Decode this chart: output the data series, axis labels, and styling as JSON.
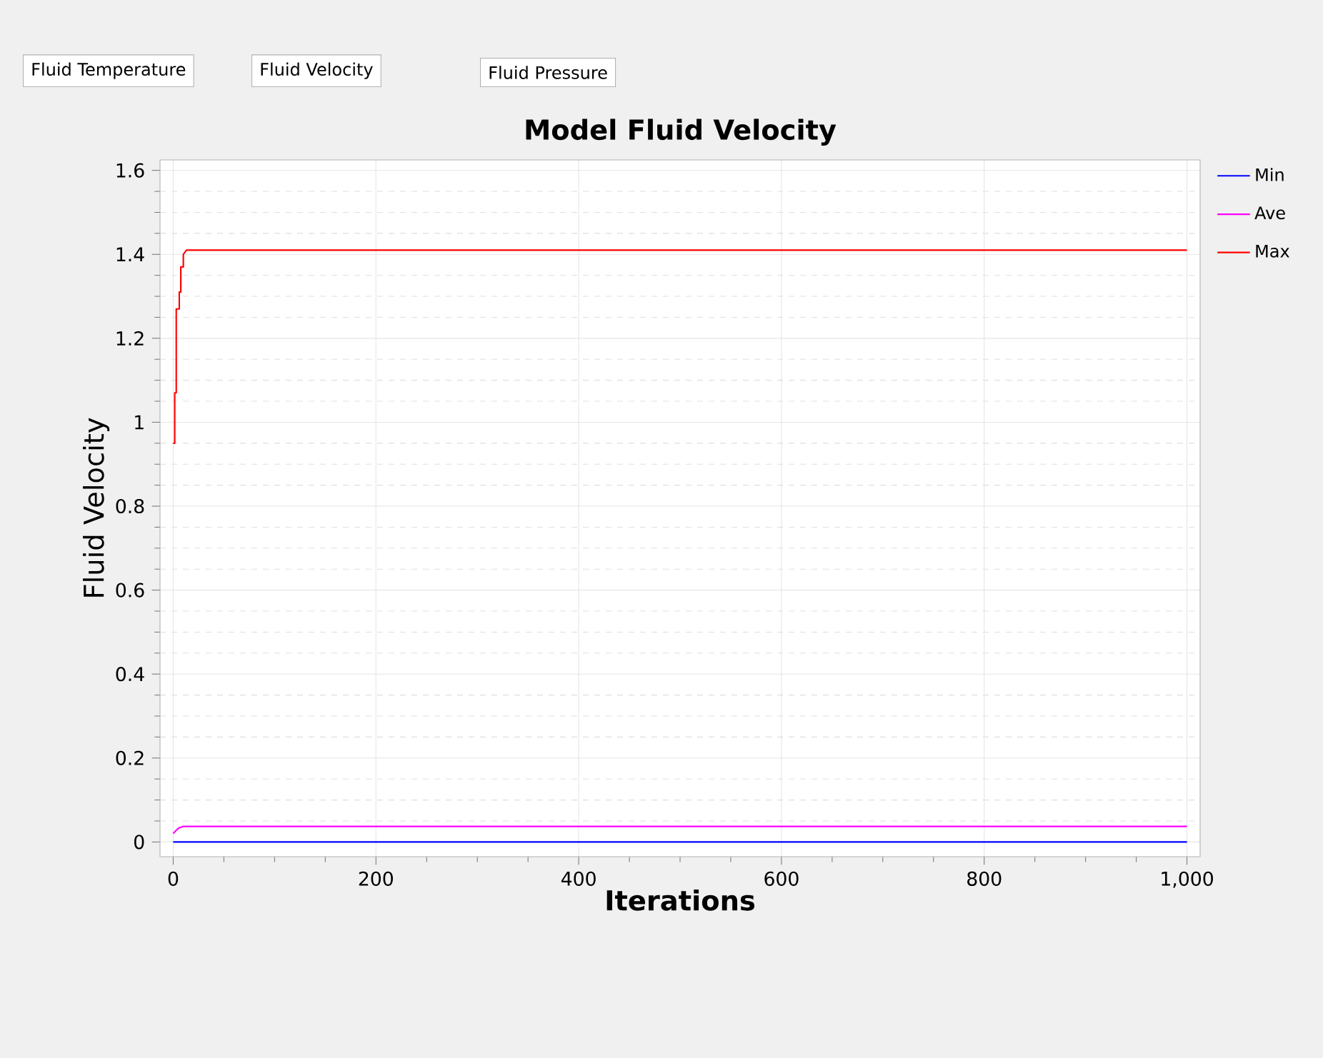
{
  "chart_data": {
    "type": "line",
    "title": "Model Fluid Velocity",
    "xlabel": "Iterations",
    "ylabel": "Fluid Velocity",
    "annotations": [
      "Fluid Temperature",
      "Fluid Velocity",
      "Fluid Pressure"
    ],
    "xlim": [
      -13,
      1013
    ],
    "ylim": [
      -0.035,
      1.625
    ],
    "xticks": [
      0,
      200,
      400,
      600,
      800,
      {
        "value": 1000,
        "label": "1,000"
      }
    ],
    "yticks": [
      0,
      0.2,
      0.4,
      0.6,
      0.8,
      1,
      1.2,
      1.4,
      1.6
    ],
    "grid": true,
    "legend": "top right",
    "marker": "none",
    "line_style": "solid",
    "series": [
      {
        "name": "Min",
        "color": "#0000ff",
        "x": [
          0,
          1000
        ],
        "values": [
          0,
          0
        ]
      },
      {
        "name": "Ave",
        "color": "#ff00ff",
        "x": [
          0,
          3,
          6,
          10,
          1000
        ],
        "values": [
          0.02,
          0.028,
          0.034,
          0.037,
          0.037
        ]
      },
      {
        "name": "Max",
        "color": "#ff0000",
        "x": [
          0,
          1.5,
          1.5,
          3,
          3,
          6,
          6,
          7.5,
          7.5,
          10,
          10,
          13,
          1000
        ],
        "values": [
          0.95,
          0.95,
          1.07,
          1.07,
          1.27,
          1.27,
          1.31,
          1.31,
          1.37,
          1.37,
          1.4,
          1.41,
          1.41
        ]
      }
    ]
  }
}
